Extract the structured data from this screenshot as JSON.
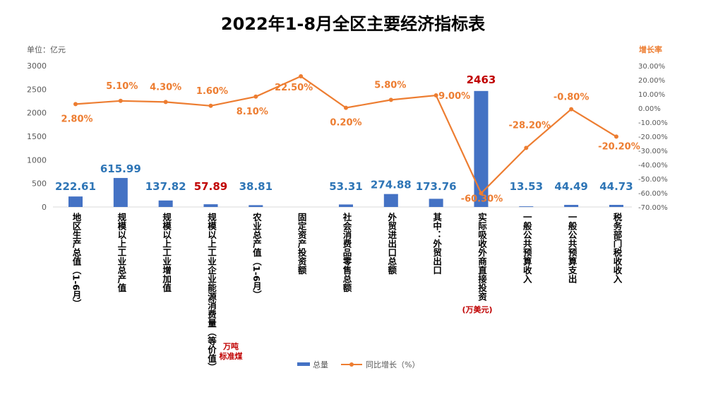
{
  "chart_data": {
    "type": "bar+line",
    "title": "2022年1-8月全区主要经济指标表",
    "left_axis_unit": "单位：亿元",
    "right_axis_unit": "增长率",
    "ylim": [
      0,
      3000
    ],
    "y_ticks": [
      "3000",
      "2500",
      "2000",
      "1500",
      "1000",
      "500",
      "0"
    ],
    "y2lim": [
      -70,
      30
    ],
    "y2_ticks": [
      "30.00%",
      "20.00%",
      "10.00%",
      "0.00%",
      "-10.00%",
      "-20.00%",
      "-30.00%",
      "-40.00%",
      "-50.00%",
      "-60.00%",
      "-70.00%"
    ],
    "categories": [
      "地区生产总值（1-6月）",
      "规模以上工业总产值",
      "规模以上工业增加值",
      "规模以上工业企业能源消费量（等价值）",
      "农业总产值（1-6月）",
      "固定资产投资额",
      "社会消费品零售总额",
      "外贸进出口总额",
      "其中：外贸出口",
      "实际吸收外商直接投资",
      "一般公共预算收入",
      "一般公共预算支出",
      "税务部门税收收入"
    ],
    "series": [
      {
        "name": "总量",
        "kind": "bar",
        "color": "#4472C4",
        "values": [
          222.61,
          615.99,
          137.82,
          57.89,
          38.81,
          null,
          53.31,
          274.88,
          173.76,
          2463,
          13.53,
          44.49,
          44.73
        ],
        "labels": [
          "222.61",
          "615.99",
          "137.82",
          "57.89",
          "38.81",
          "",
          "53.31",
          "274.88",
          "173.76",
          "2463",
          "13.53",
          "44.49",
          "44.73"
        ]
      },
      {
        "name": "同比增长（%）",
        "kind": "line",
        "color": "#ED7D31",
        "values": [
          2.8,
          5.1,
          4.3,
          1.6,
          8.1,
          22.5,
          0.2,
          5.8,
          9.0,
          -60.3,
          -28.2,
          -0.8,
          -20.2
        ],
        "labels": [
          "2.80%",
          "5.10%",
          "4.30%",
          "1.60%",
          "8.10%",
          "22.50%",
          "0.20%",
          "5.80%",
          "9.00%",
          "-60.30%",
          "-28.20%",
          "-0.80%",
          "-20.20%"
        ]
      }
    ],
    "highlight_red": [
      3,
      9
    ],
    "notes": {
      "energy_unit": [
        "万吨",
        "标准煤"
      ],
      "fdi_unit": "(万美元)"
    },
    "legend": [
      "总量",
      "同比增长（%）"
    ],
    "legend_position": "bottom"
  }
}
